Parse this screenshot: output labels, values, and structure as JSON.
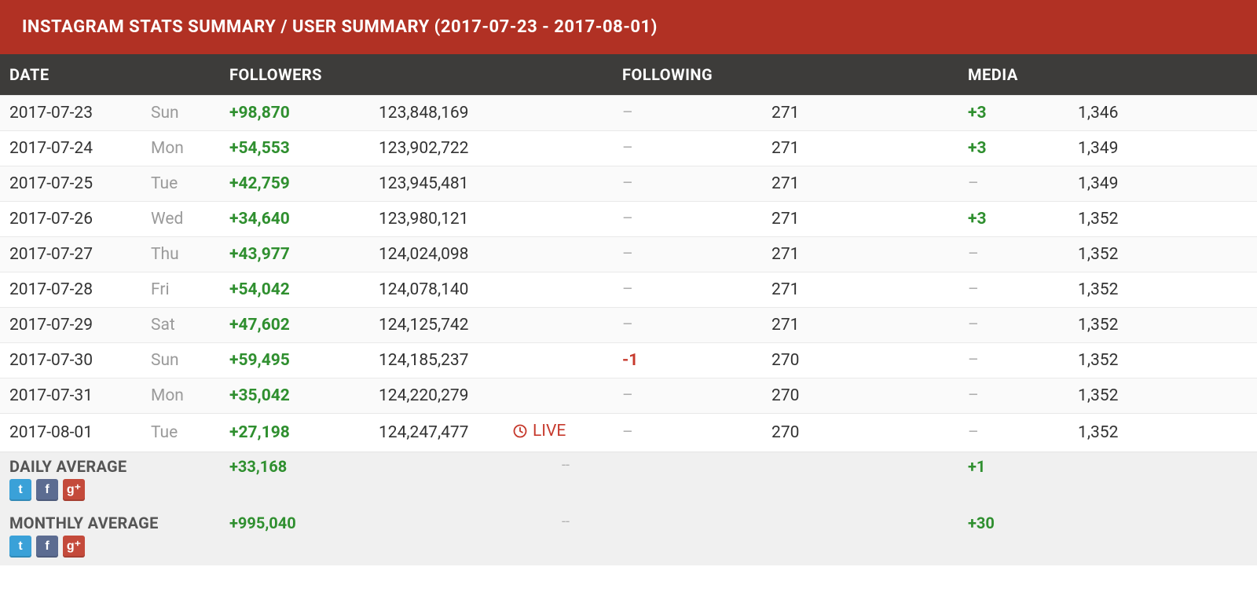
{
  "colors": {
    "header_bg": "#b13124",
    "thead_bg": "#3d3c3a",
    "row_alt_bg": "#fafafa",
    "row_bg": "#ffffff",
    "summary_bg": "#f0f0f0",
    "positive": "#2f8f2f",
    "negative": "#c63a2d",
    "dash": "#b0b0b0",
    "day": "#9a9a9a",
    "text": "#333333",
    "twitter": "#3aa1d8",
    "facebook": "#5c6c91",
    "gplus": "#c44a3b"
  },
  "header": {
    "title": "INSTAGRAM STATS SUMMARY / USER SUMMARY (2017-07-23 - 2017-08-01)"
  },
  "columns": {
    "date": "DATE",
    "followers": "FOLLOWERS",
    "following": "FOLLOWING",
    "media": "MEDIA"
  },
  "live_label": "LIVE",
  "rows": [
    {
      "date": "2017-07-23",
      "day": "Sun",
      "followers_delta": "+98,870",
      "followers_delta_sign": "pos",
      "followers_total": "123,848,169",
      "live": false,
      "following_delta": "–",
      "following_delta_sign": "dash",
      "following_total": "271",
      "media_delta": "+3",
      "media_delta_sign": "pos",
      "media_total": "1,346"
    },
    {
      "date": "2017-07-24",
      "day": "Mon",
      "followers_delta": "+54,553",
      "followers_delta_sign": "pos",
      "followers_total": "123,902,722",
      "live": false,
      "following_delta": "–",
      "following_delta_sign": "dash",
      "following_total": "271",
      "media_delta": "+3",
      "media_delta_sign": "pos",
      "media_total": "1,349"
    },
    {
      "date": "2017-07-25",
      "day": "Tue",
      "followers_delta": "+42,759",
      "followers_delta_sign": "pos",
      "followers_total": "123,945,481",
      "live": false,
      "following_delta": "–",
      "following_delta_sign": "dash",
      "following_total": "271",
      "media_delta": "–",
      "media_delta_sign": "dash",
      "media_total": "1,349"
    },
    {
      "date": "2017-07-26",
      "day": "Wed",
      "followers_delta": "+34,640",
      "followers_delta_sign": "pos",
      "followers_total": "123,980,121",
      "live": false,
      "following_delta": "–",
      "following_delta_sign": "dash",
      "following_total": "271",
      "media_delta": "+3",
      "media_delta_sign": "pos",
      "media_total": "1,352"
    },
    {
      "date": "2017-07-27",
      "day": "Thu",
      "followers_delta": "+43,977",
      "followers_delta_sign": "pos",
      "followers_total": "124,024,098",
      "live": false,
      "following_delta": "–",
      "following_delta_sign": "dash",
      "following_total": "271",
      "media_delta": "–",
      "media_delta_sign": "dash",
      "media_total": "1,352"
    },
    {
      "date": "2017-07-28",
      "day": "Fri",
      "followers_delta": "+54,042",
      "followers_delta_sign": "pos",
      "followers_total": "124,078,140",
      "live": false,
      "following_delta": "–",
      "following_delta_sign": "dash",
      "following_total": "271",
      "media_delta": "–",
      "media_delta_sign": "dash",
      "media_total": "1,352"
    },
    {
      "date": "2017-07-29",
      "day": "Sat",
      "followers_delta": "+47,602",
      "followers_delta_sign": "pos",
      "followers_total": "124,125,742",
      "live": false,
      "following_delta": "–",
      "following_delta_sign": "dash",
      "following_total": "271",
      "media_delta": "–",
      "media_delta_sign": "dash",
      "media_total": "1,352"
    },
    {
      "date": "2017-07-30",
      "day": "Sun",
      "followers_delta": "+59,495",
      "followers_delta_sign": "pos",
      "followers_total": "124,185,237",
      "live": false,
      "following_delta": "-1",
      "following_delta_sign": "neg",
      "following_total": "270",
      "media_delta": "–",
      "media_delta_sign": "dash",
      "media_total": "1,352"
    },
    {
      "date": "2017-07-31",
      "day": "Mon",
      "followers_delta": "+35,042",
      "followers_delta_sign": "pos",
      "followers_total": "124,220,279",
      "live": false,
      "following_delta": "–",
      "following_delta_sign": "dash",
      "following_total": "270",
      "media_delta": "–",
      "media_delta_sign": "dash",
      "media_total": "1,352"
    },
    {
      "date": "2017-08-01",
      "day": "Tue",
      "followers_delta": "+27,198",
      "followers_delta_sign": "pos",
      "followers_total": "124,247,477",
      "live": true,
      "following_delta": "–",
      "following_delta_sign": "dash",
      "following_total": "270",
      "media_delta": "–",
      "media_delta_sign": "dash",
      "media_total": "1,352"
    }
  ],
  "summaries": [
    {
      "label": "DAILY AVERAGE",
      "followers_delta": "+33,168",
      "followers_delta_sign": "pos",
      "center": "--",
      "media_delta": "+1",
      "media_delta_sign": "pos",
      "share_icons": true
    },
    {
      "label": "MONTHLY AVERAGE",
      "followers_delta": "+995,040",
      "followers_delta_sign": "pos",
      "center": "--",
      "media_delta": "+30",
      "media_delta_sign": "pos",
      "share_icons": true
    }
  ]
}
